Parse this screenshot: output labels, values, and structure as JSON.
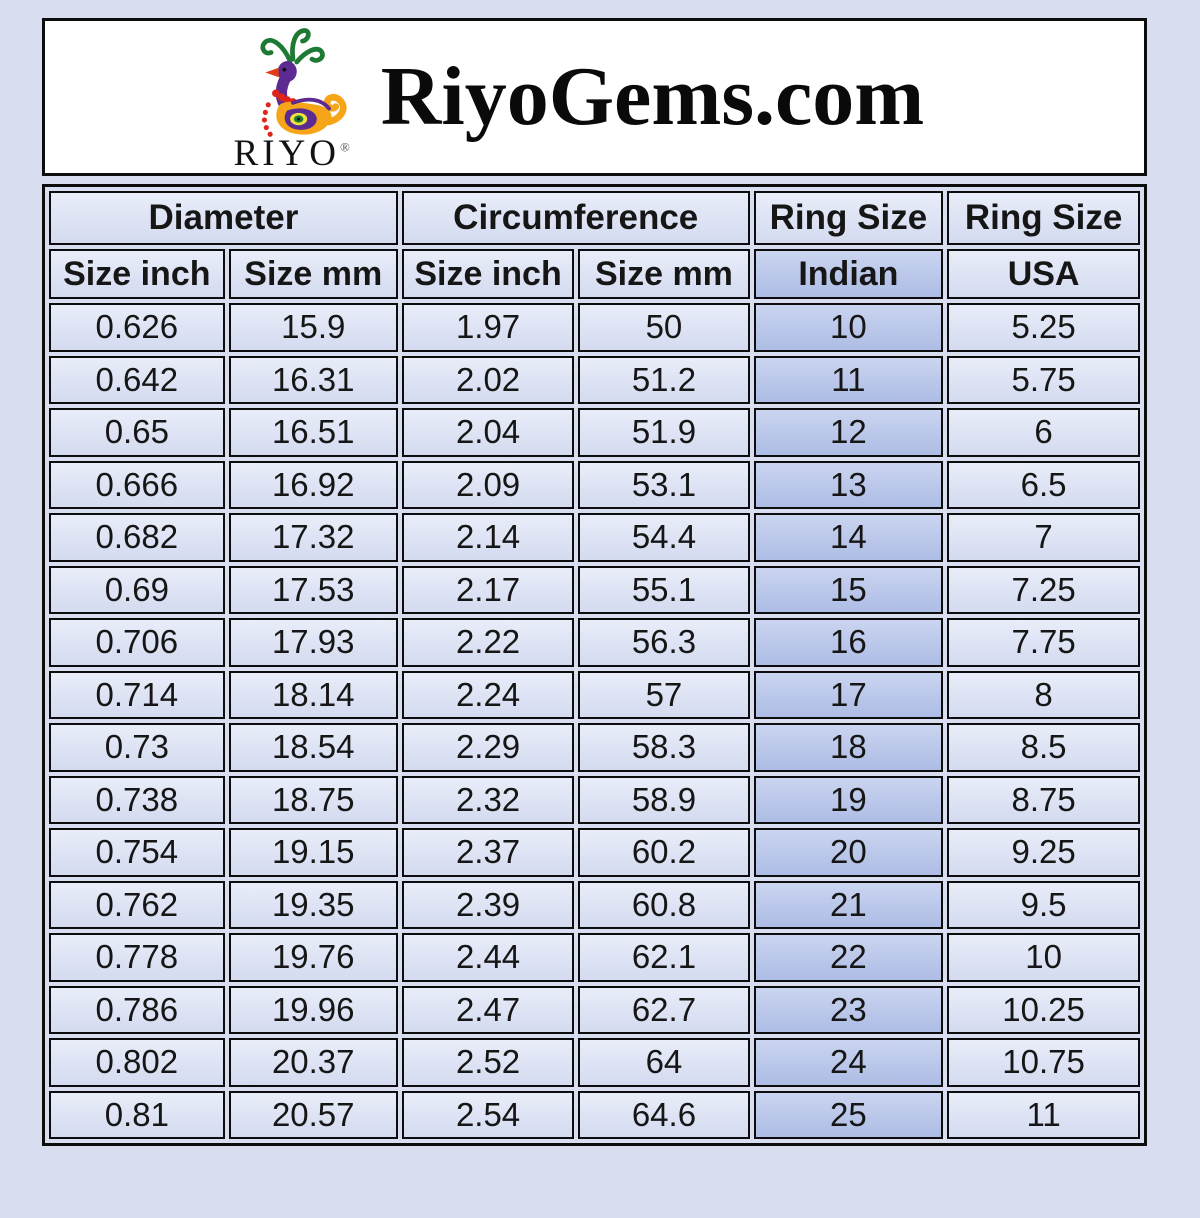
{
  "header": {
    "title": "RiyoGems.com",
    "logo_text": "RIYO",
    "registered_mark": "®",
    "logo_icon": "peacock-logo-icon"
  },
  "chart_data": {
    "type": "table",
    "title": "RiyoGems.com ring size conversion chart",
    "group_headers": [
      "Diameter",
      "Circumference",
      "Ring Size",
      "Ring Size"
    ],
    "columns": [
      "Size inch",
      "Size mm",
      "Size inch",
      "Size mm",
      "Indian",
      "USA"
    ],
    "rows": [
      [
        "0.626",
        "15.9",
        "1.97",
        "50",
        "10",
        "5.25"
      ],
      [
        "0.642",
        "16.31",
        "2.02",
        "51.2",
        "11",
        "5.75"
      ],
      [
        "0.65",
        "16.51",
        "2.04",
        "51.9",
        "12",
        "6"
      ],
      [
        "0.666",
        "16.92",
        "2.09",
        "53.1",
        "13",
        "6.5"
      ],
      [
        "0.682",
        "17.32",
        "2.14",
        "54.4",
        "14",
        "7"
      ],
      [
        "0.69",
        "17.53",
        "2.17",
        "55.1",
        "15",
        "7.25"
      ],
      [
        "0.706",
        "17.93",
        "2.22",
        "56.3",
        "16",
        "7.75"
      ],
      [
        "0.714",
        "18.14",
        "2.24",
        "57",
        "17",
        "8"
      ],
      [
        "0.73",
        "18.54",
        "2.29",
        "58.3",
        "18",
        "8.5"
      ],
      [
        "0.738",
        "18.75",
        "2.32",
        "58.9",
        "19",
        "8.75"
      ],
      [
        "0.754",
        "19.15",
        "2.37",
        "60.2",
        "20",
        "9.25"
      ],
      [
        "0.762",
        "19.35",
        "2.39",
        "60.8",
        "21",
        "9.5"
      ],
      [
        "0.778",
        "19.76",
        "2.44",
        "62.1",
        "22",
        "10"
      ],
      [
        "0.786",
        "19.96",
        "2.47",
        "62.7",
        "23",
        "10.25"
      ],
      [
        "0.802",
        "20.37",
        "2.52",
        "64",
        "24",
        "10.75"
      ],
      [
        "0.81",
        "20.57",
        "2.54",
        "64.6",
        "25",
        "11"
      ]
    ],
    "highlighted_column": "Indian"
  },
  "colors": {
    "page_background": "#d8ddf0",
    "cell_background": "#dde3f4",
    "indian_column_background": "#bac7ea",
    "border": "#0d0d0d",
    "header_box_background": "#ffffff",
    "peacock_purple": "#5b2b91",
    "peacock_orange": "#f6a519",
    "peacock_green": "#1e7a33",
    "peacock_red": "#e23b17"
  }
}
